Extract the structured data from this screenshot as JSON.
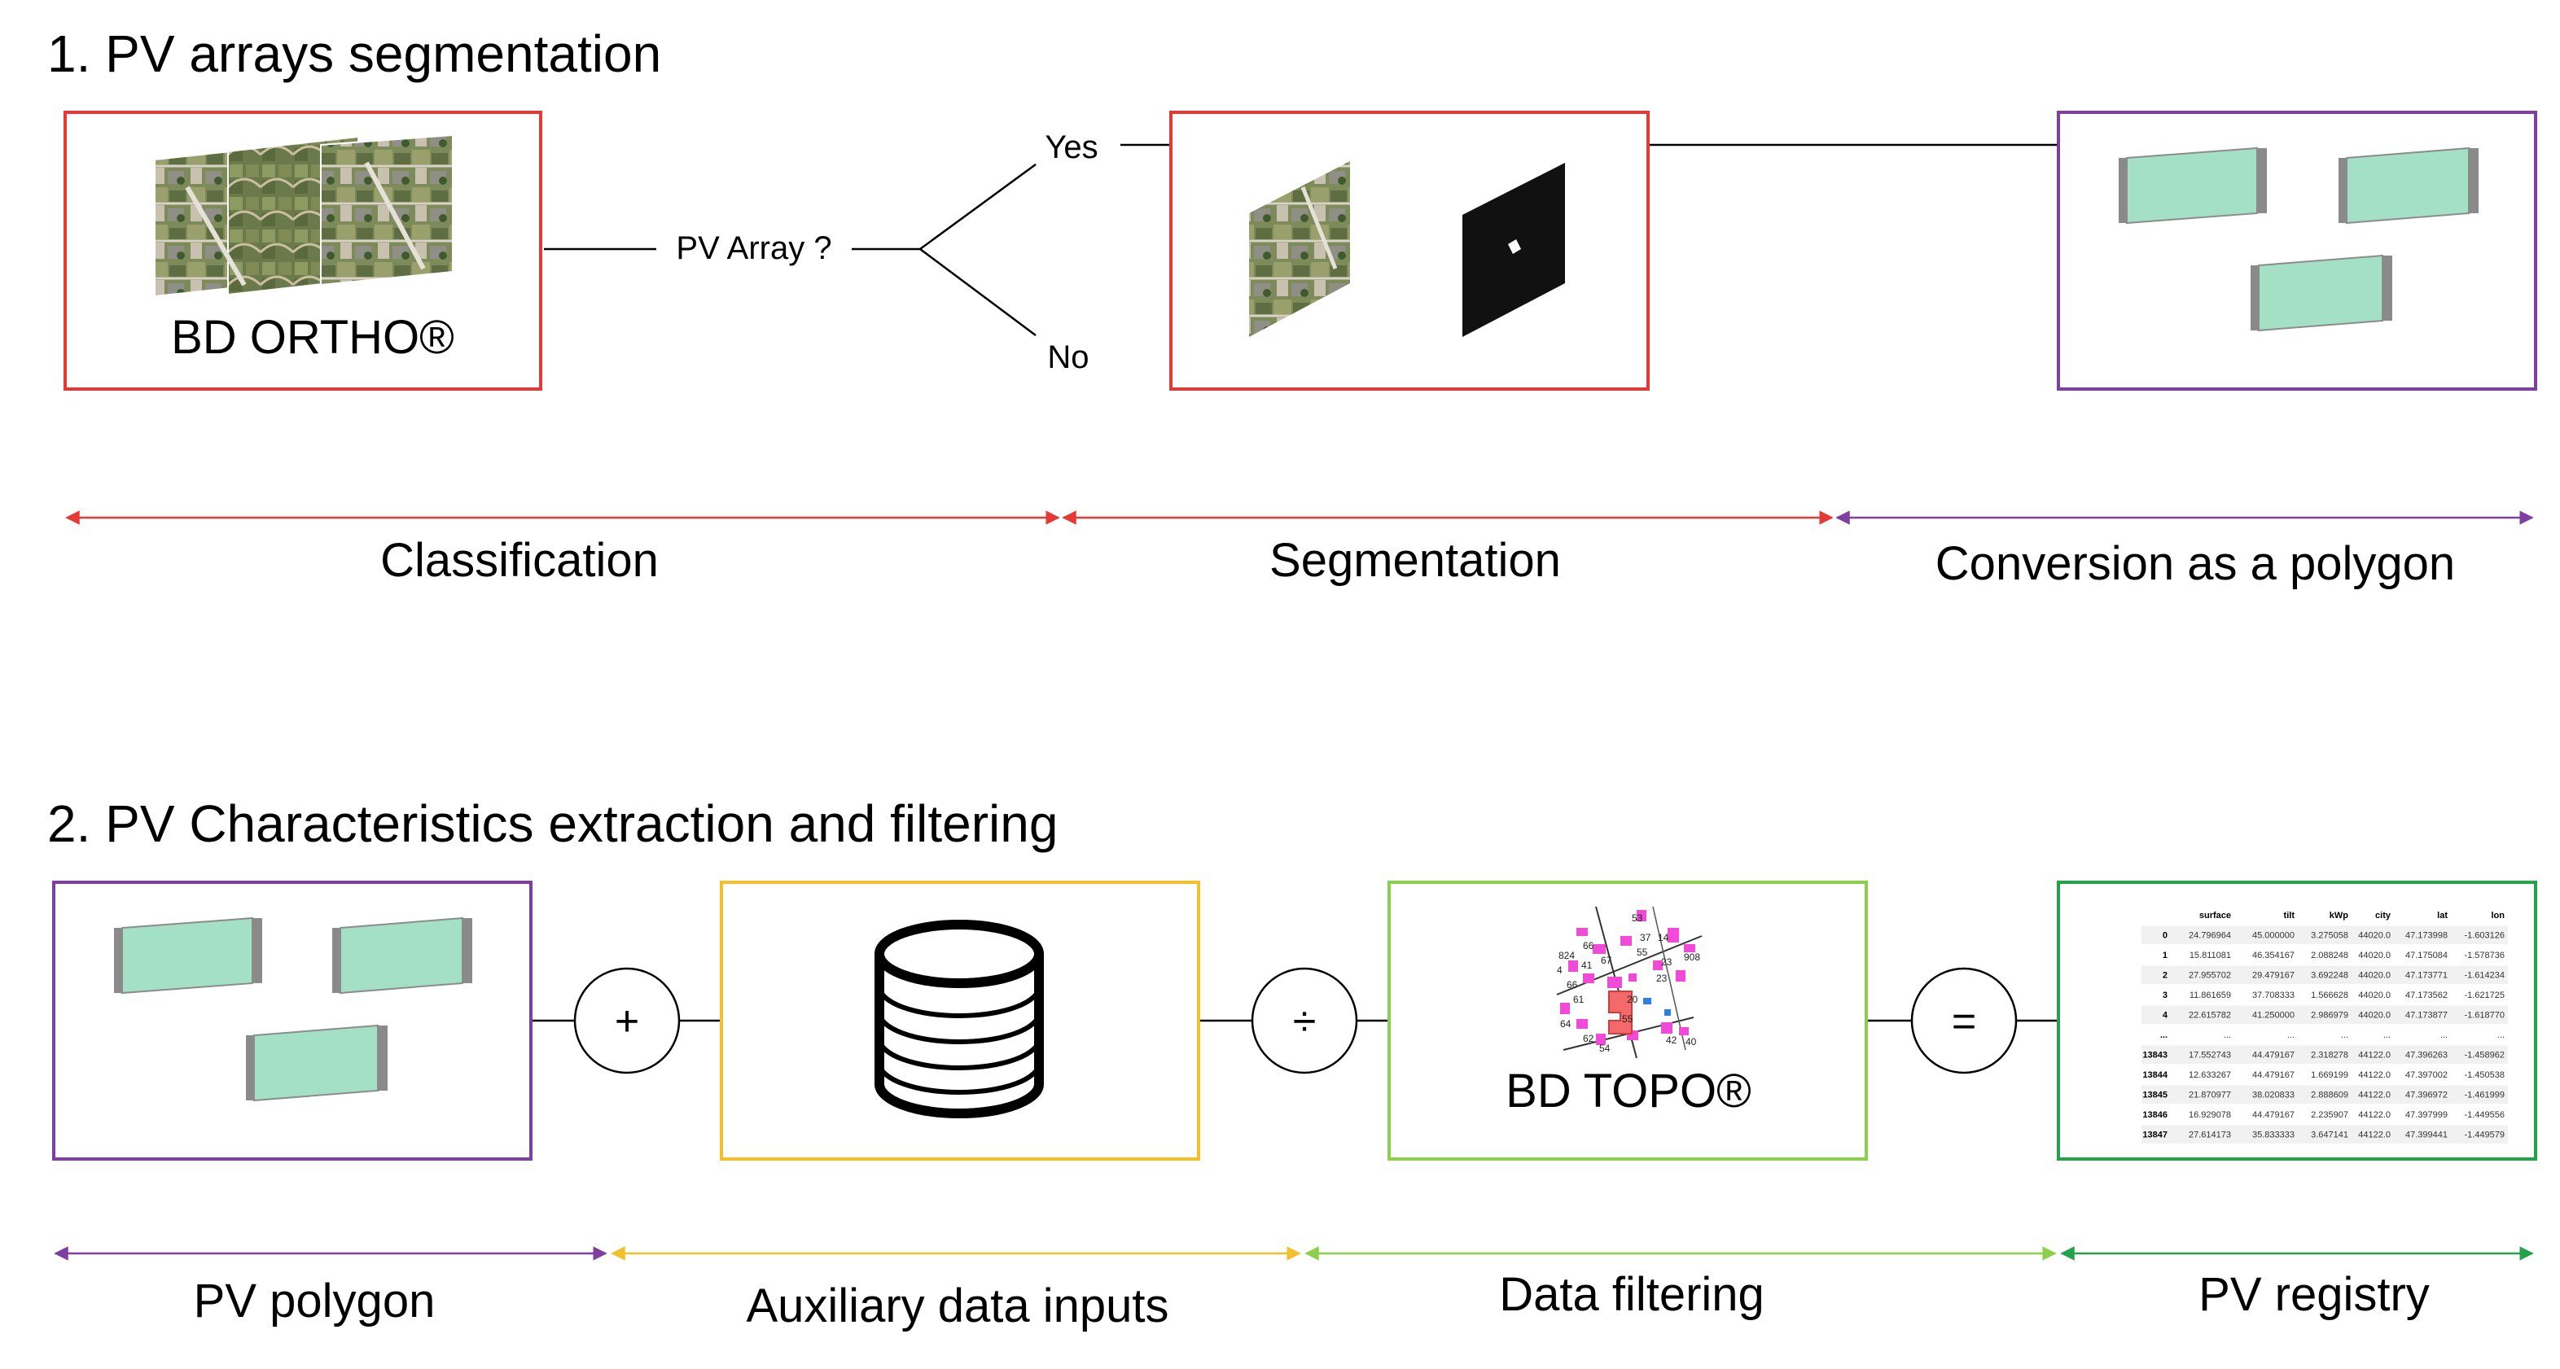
{
  "colors": {
    "red": "#e53935",
    "purple": "#7e3fa0",
    "yellow": "#f2c02b",
    "light_green": "#8ccf4d",
    "green": "#23a24a",
    "panel_fill": "#a3e0c5"
  },
  "section1": {
    "title": "1. PV arrays segmentation",
    "ortho_label": "BD ORTHO®",
    "question": "PV Array ?",
    "yes": "Yes",
    "no": "No",
    "stages": [
      "Classification",
      "Segmentation",
      "Conversion as a polygon"
    ]
  },
  "section2": {
    "title": "2. PV Characteristics extraction and filtering",
    "ops": {
      "plus": "+",
      "divide": "÷",
      "equals": "="
    },
    "topo_label": "BD TOPO®",
    "stages": [
      "PV polygon",
      "Auxiliary data inputs",
      "Data filtering",
      "PV registry"
    ],
    "map_numbers": [
      "824",
      "66",
      "4",
      "67",
      "66",
      "41",
      "53",
      "37",
      "14",
      "55",
      "23",
      "908",
      "61",
      "23",
      "20",
      "64",
      "55",
      "42",
      "40",
      "62",
      "54"
    ]
  },
  "registry_table": {
    "columns": [
      "",
      "surface",
      "tilt",
      "kWp",
      "city",
      "lat",
      "lon"
    ],
    "rows": [
      [
        "0",
        "24.796964",
        "45.000000",
        "3.275058",
        "44020.0",
        "47.173998",
        "-1.603126"
      ],
      [
        "1",
        "15.811081",
        "46.354167",
        "2.088248",
        "44020.0",
        "47.175084",
        "-1.578736"
      ],
      [
        "2",
        "27.955702",
        "29.479167",
        "3.692248",
        "44020.0",
        "47.173771",
        "-1.614234"
      ],
      [
        "3",
        "11.861659",
        "37.708333",
        "1.566628",
        "44020.0",
        "47.173562",
        "-1.621725"
      ],
      [
        "4",
        "22.615782",
        "41.250000",
        "2.986979",
        "44020.0",
        "47.173877",
        "-1.618770"
      ],
      [
        "...",
        "...",
        "...",
        "...",
        "...",
        "...",
        "..."
      ],
      [
        "13843",
        "17.552743",
        "44.479167",
        "2.318278",
        "44122.0",
        "47.396263",
        "-1.458962"
      ],
      [
        "13844",
        "12.633267",
        "44.479167",
        "1.669199",
        "44122.0",
        "47.397002",
        "-1.450538"
      ],
      [
        "13845",
        "21.870977",
        "38.020833",
        "2.888609",
        "44122.0",
        "47.396972",
        "-1.461999"
      ],
      [
        "13846",
        "16.929078",
        "44.479167",
        "2.235907",
        "44122.0",
        "47.397999",
        "-1.449556"
      ],
      [
        "13847",
        "27.614173",
        "35.833333",
        "3.647141",
        "44122.0",
        "47.399441",
        "-1.449579"
      ]
    ]
  }
}
